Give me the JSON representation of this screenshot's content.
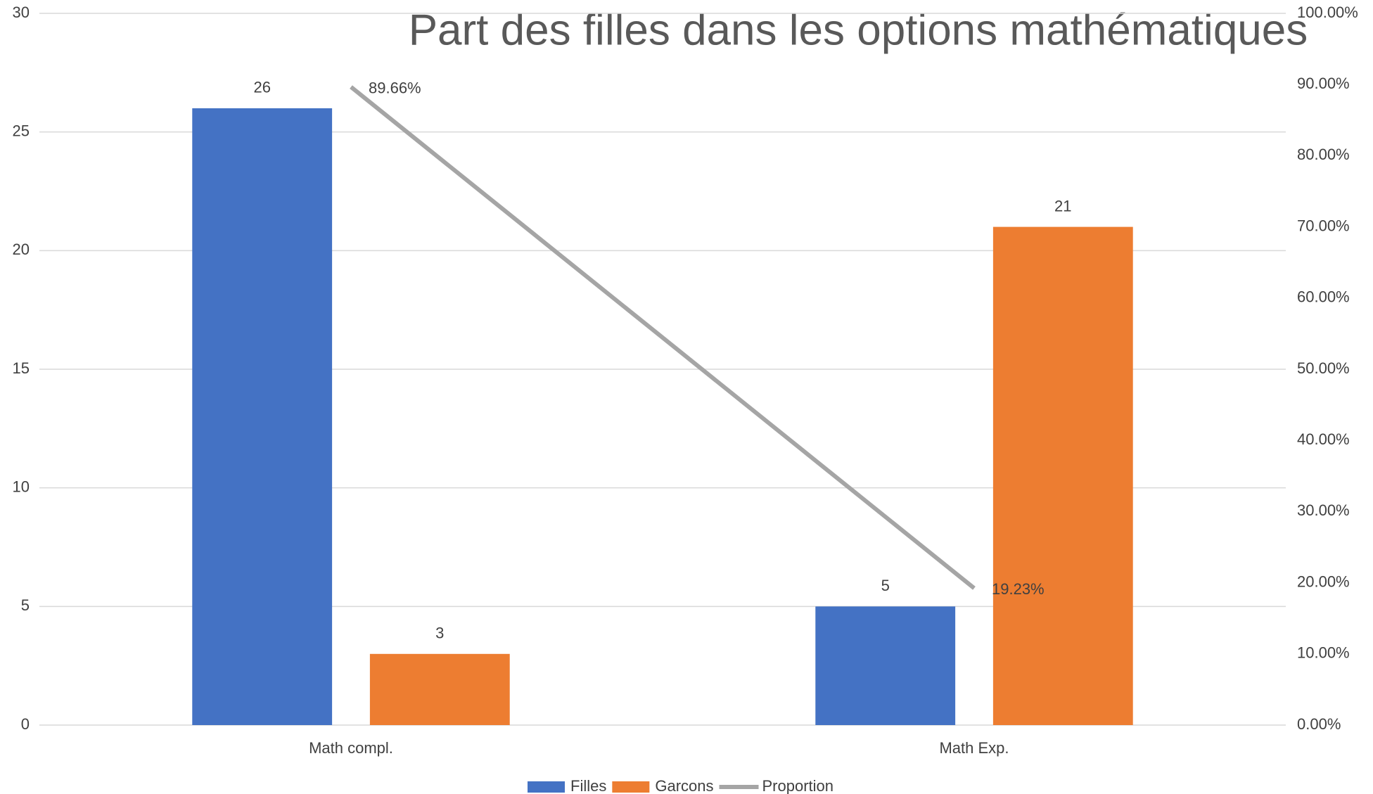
{
  "chart_data": {
    "type": "bar_line",
    "title": "Part des filles dans les options mathématiques",
    "categories": [
      "Math compl.",
      "Math Exp."
    ],
    "series": [
      {
        "name": "Filles",
        "color": "#4472c4",
        "values": [
          26,
          5
        ]
      },
      {
        "name": "Garcons",
        "color": "#ed7d31",
        "values": [
          3,
          21
        ]
      },
      {
        "name": "Proportion",
        "color": "#a5a5a5",
        "axis": "y2",
        "values": [
          89.66,
          19.23
        ],
        "value_labels": [
          "89.66%",
          "19.23%"
        ]
      }
    ],
    "ylim": [
      0,
      30
    ],
    "yticks": [
      0,
      5,
      10,
      15,
      20,
      25,
      30
    ],
    "y2lim": [
      0,
      100
    ],
    "y2ticks": [
      {
        "value": 0,
        "label": "0.00%"
      },
      {
        "value": 10,
        "label": "10.00%"
      },
      {
        "value": 20,
        "label": "20.00%"
      },
      {
        "value": 30,
        "label": "30.00%"
      },
      {
        "value": 40,
        "label": "40.00%"
      },
      {
        "value": 50,
        "label": "50.00%"
      },
      {
        "value": 60,
        "label": "60.00%"
      },
      {
        "value": 70,
        "label": "70.00%"
      },
      {
        "value": 80,
        "label": "80.00%"
      },
      {
        "value": 90,
        "label": "90.00%"
      },
      {
        "value": 100,
        "label": "100.00%"
      }
    ],
    "grid": true,
    "legend": "bottom"
  }
}
